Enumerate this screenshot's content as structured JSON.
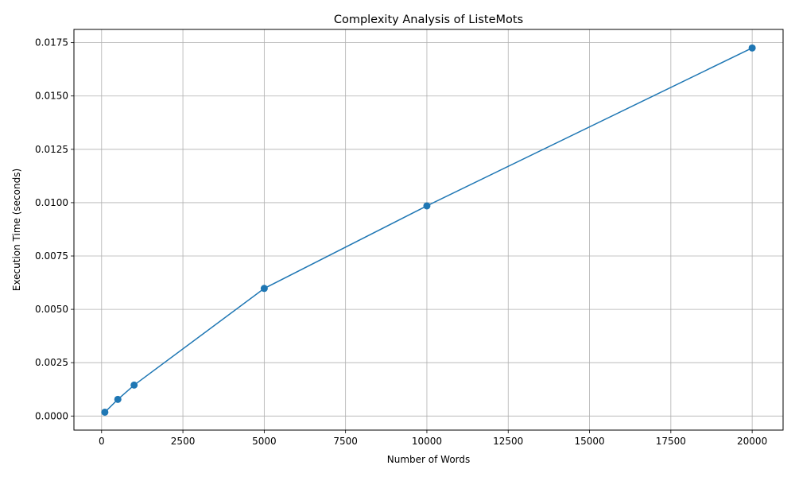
{
  "chart_data": {
    "type": "line",
    "title": "Complexity Analysis of ListeMots",
    "xlabel": "Number of Words",
    "ylabel": "Execution Time (seconds)",
    "xlim": [
      -850,
      20950
    ],
    "ylim": [
      -0.00066,
      0.01812
    ],
    "xticks": [
      0,
      2500,
      5000,
      7500,
      10000,
      12500,
      15000,
      17500,
      20000
    ],
    "xtick_labels": [
      "0",
      "2500",
      "5000",
      "7500",
      "10000",
      "12500",
      "15000",
      "17500",
      "20000"
    ],
    "yticks": [
      0.0,
      0.0025,
      0.005,
      0.0075,
      0.01,
      0.0125,
      0.015,
      0.0175
    ],
    "ytick_labels": [
      "0.0000",
      "0.0025",
      "0.0050",
      "0.0075",
      "0.0100",
      "0.0125",
      "0.0150",
      "0.0175"
    ],
    "grid": true,
    "series": [
      {
        "color": "#1f77b4",
        "marker": "circle",
        "x": [
          100,
          500,
          1000,
          5000,
          10000,
          20000
        ],
        "y": [
          0.00018,
          0.00078,
          0.00145,
          0.00598,
          0.00985,
          0.01725
        ]
      }
    ]
  }
}
